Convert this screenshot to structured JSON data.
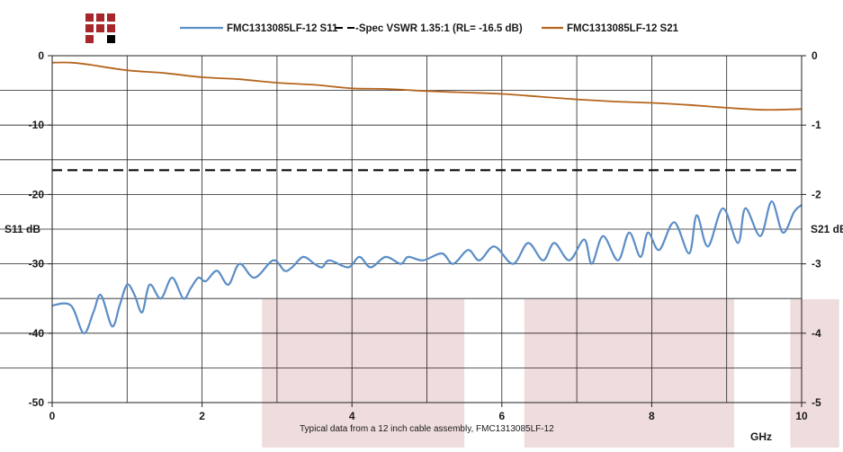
{
  "chart_data": {
    "type": "line",
    "legend": [
      {
        "label": "FMC1313085LF-12 S11",
        "color": "#5b8ec6",
        "dash": "solid"
      },
      {
        "label": "Spec VSWR 1.35:1 (RL= -16.5 dB)",
        "color": "#000000",
        "dash": "dashed"
      },
      {
        "label": "FMC1313085LF-12 S21",
        "color": "#b5651d",
        "dash": "solid"
      }
    ],
    "x_axis": {
      "label": "GHz",
      "range": [
        0,
        10
      ],
      "ticks": [
        "0",
        "2",
        "4",
        "6",
        "8",
        "10"
      ]
    },
    "y_left": {
      "label": "S11 dB",
      "range": [
        -50,
        0
      ],
      "ticks": [
        "0",
        "-10",
        "-20",
        "-30",
        "-40",
        "-50"
      ]
    },
    "y_right": {
      "label": "S21 dB",
      "range": [
        -5,
        0
      ],
      "ticks": [
        "0",
        "-1",
        "-2",
        "-3",
        "-4",
        "-5"
      ]
    },
    "grid": true,
    "footnote": "Typical data from a 12 inch cable assembly, FMC1313085LF-12",
    "series": [
      {
        "name": "FMC1313085LF-12 S11",
        "axis": "left",
        "color": "#5b8ec6",
        "x": [
          0,
          0.25,
          0.42,
          0.55,
          0.65,
          0.8,
          0.9,
          1.0,
          1.1,
          1.2,
          1.3,
          1.45,
          1.6,
          1.75,
          1.85,
          1.95,
          2.05,
          2.2,
          2.35,
          2.5,
          2.7,
          2.95,
          3.1,
          3.2,
          3.35,
          3.5,
          3.6,
          3.7,
          3.95,
          4.1,
          4.25,
          4.45,
          4.65,
          4.75,
          4.95,
          5.2,
          5.35,
          5.55,
          5.7,
          5.9,
          6.15,
          6.35,
          6.55,
          6.7,
          6.9,
          7.1,
          7.2,
          7.35,
          7.55,
          7.7,
          7.85,
          7.95,
          8.1,
          8.3,
          8.5,
          8.6,
          8.75,
          8.95,
          9.15,
          9.25,
          9.45,
          9.6,
          9.75,
          9.9,
          10.0
        ],
        "y": [
          -36,
          -36,
          -40,
          -37,
          -34.5,
          -39,
          -36,
          -33,
          -34.5,
          -37,
          -33,
          -35,
          -32,
          -35,
          -33.5,
          -32,
          -32.5,
          -31,
          -33,
          -30,
          -32,
          -29.5,
          -31,
          -30.5,
          -29,
          -30,
          -30.5,
          -29.5,
          -30.5,
          -29,
          -30.5,
          -29,
          -30,
          -29,
          -29.5,
          -28.5,
          -30,
          -28,
          -29.5,
          -27.5,
          -30,
          -27,
          -29.5,
          -27,
          -29.5,
          -26.5,
          -30,
          -26,
          -29.5,
          -25.5,
          -29,
          -25.5,
          -28,
          -24,
          -28.5,
          -23,
          -27.5,
          -22,
          -27,
          -22,
          -26,
          -21,
          -25.5,
          -22.5,
          -21.5
        ]
      },
      {
        "name": "Spec VSWR 1.35:1 (RL= -16.5 dB)",
        "axis": "left",
        "color": "#000000",
        "x": [
          0,
          10
        ],
        "y": [
          -16.5,
          -16.5
        ]
      },
      {
        "name": "FMC1313085LF-12 S21",
        "axis": "right",
        "color": "#b5651d",
        "x": [
          0,
          0.25,
          0.5,
          1.0,
          1.5,
          2.0,
          2.5,
          3.0,
          3.5,
          4.0,
          4.5,
          5.0,
          5.5,
          6.0,
          6.5,
          7.0,
          7.5,
          8.0,
          8.5,
          9.0,
          9.5,
          10.0
        ],
        "y": [
          -0.1,
          -0.1,
          -0.13,
          -0.21,
          -0.25,
          -0.31,
          -0.34,
          -0.39,
          -0.42,
          -0.47,
          -0.48,
          -0.51,
          -0.53,
          -0.55,
          -0.59,
          -0.63,
          -0.66,
          -0.68,
          -0.71,
          -0.75,
          -0.78,
          -0.77
        ]
      }
    ],
    "shaded_bands_x": [
      [
        2.8,
        5.5
      ],
      [
        6.3,
        9.1
      ],
      [
        9.85,
        10.5
      ]
    ],
    "band_color": "#efdcdc"
  }
}
